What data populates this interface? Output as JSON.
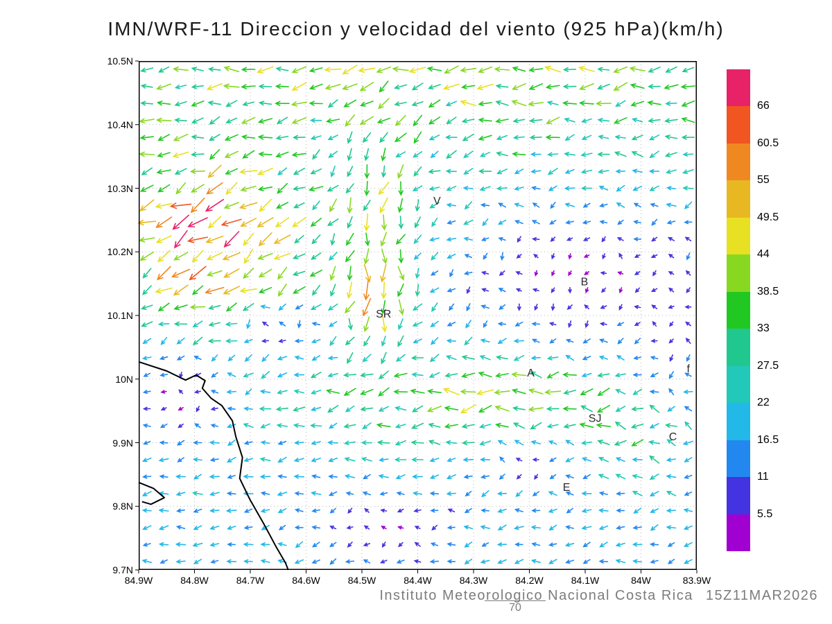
{
  "title": "IMN/WRF-11 Direccion y velocidad del viento (925 hPa)(km/h)",
  "footer": {
    "credit": "Instituto Meteorologico Nacional Costa Rica",
    "valid_time": "15Z11MAR2026",
    "page_number": "70"
  },
  "chart_data": {
    "type": "quiver",
    "title": "IMN/WRF-11 Direccion y velocidad del viento (925 hPa)(km/h)",
    "model": "IMN/WRF-11",
    "variable": "Direccion y velocidad del viento",
    "level": "925 hPa",
    "units": "km/h",
    "valid_time": "15Z11MAR2026",
    "grid_on": true,
    "x_axis": {
      "ticks": [
        "84.9W",
        "84.8W",
        "84.7W",
        "84.6W",
        "84.5W",
        "84.4W",
        "84.3W",
        "84.2W",
        "84.1W",
        "84W",
        "83.9W"
      ],
      "range_deg_west": [
        84.9,
        83.9
      ]
    },
    "y_axis": {
      "ticks": [
        "10.5N",
        "10.4N",
        "10.3N",
        "10.2N",
        "10.1N",
        "10N",
        "9.9N",
        "9.8N",
        "9.7N"
      ],
      "range_deg_north": [
        10.5,
        9.7
      ]
    },
    "grid_spacing_deg": 0.1,
    "colorbar": {
      "position": "right",
      "labels_top_to_bottom": [
        "66",
        "60.5",
        "55",
        "49.5",
        "44",
        "38.5",
        "33",
        "27.5",
        "22",
        "16.5",
        "11",
        "5.5"
      ],
      "levels": [
        5.5,
        11,
        16.5,
        22,
        27.5,
        33,
        38.5,
        44,
        49.5,
        55,
        60.5,
        66
      ],
      "colors_bottom_to_top": [
        "#a000d0",
        "#4433e0",
        "#2288f0",
        "#22b8e8",
        "#22c8b8",
        "#20c890",
        "#22c822",
        "#88d822",
        "#e8e022",
        "#e8b822",
        "#f08822",
        "#f05522",
        "#e82266"
      ]
    },
    "stations": [
      {
        "label": "V",
        "fx": 0.528,
        "fy": 0.282
      },
      {
        "label": "B",
        "fx": 0.792,
        "fy": 0.441
      },
      {
        "label": "SR",
        "fx": 0.425,
        "fy": 0.504
      },
      {
        "label": "A",
        "fx": 0.696,
        "fy": 0.62
      },
      {
        "label": "SJ",
        "fx": 0.806,
        "fy": 0.709
      },
      {
        "label": "C",
        "fx": 0.95,
        "fy": 0.745
      },
      {
        "label": "E",
        "fx": 0.76,
        "fy": 0.845
      },
      {
        "label": "f",
        "fx": 0.982,
        "fy": 0.612
      }
    ],
    "coastline_fraction_points": [
      [
        [
          0.0,
          0.591
        ],
        [
          0.05,
          0.609
        ],
        [
          0.084,
          0.627
        ],
        [
          0.103,
          0.617
        ],
        [
          0.119,
          0.628
        ],
        [
          0.114,
          0.643
        ],
        [
          0.13,
          0.663
        ],
        [
          0.149,
          0.677
        ],
        [
          0.168,
          0.707
        ],
        [
          0.174,
          0.738
        ],
        [
          0.186,
          0.779
        ],
        [
          0.181,
          0.82
        ],
        [
          0.199,
          0.861
        ],
        [
          0.224,
          0.909
        ],
        [
          0.246,
          0.954
        ],
        [
          0.263,
          0.986
        ],
        [
          0.268,
          1.0
        ]
      ],
      [
        [
          0.0,
          0.828
        ],
        [
          0.027,
          0.84
        ],
        [
          0.046,
          0.858
        ],
        [
          0.022,
          0.871
        ],
        [
          0.006,
          0.866
        ]
      ]
    ],
    "wind_field": {
      "seed": 20260311,
      "nx": 33,
      "ny": 30,
      "arrow": {
        "min_len": 7,
        "max_len": 30,
        "len_base": 5,
        "len_per_speed": 0.38,
        "stroke_width": 1.6
      },
      "base": {
        "u0": -16,
        "du_north": -14,
        "v0": -3
      },
      "jets": [
        {
          "cx": 0.5,
          "cy": 0.0,
          "sx": 0.45,
          "sy": 0.12,
          "au": -13,
          "av": 0
        },
        {
          "cx": 0.13,
          "cy": 0.35,
          "sx": 0.16,
          "sy": 0.17,
          "au": -24,
          "av": -32
        },
        {
          "cx": 0.42,
          "cy": 0.3,
          "sx": 0.1,
          "sy": 0.26,
          "au": 16,
          "av": -36
        },
        {
          "cx": 0.43,
          "cy": 0.47,
          "sx": 0.07,
          "sy": 0.1,
          "au": 14,
          "av": -26
        },
        {
          "cx": 0.62,
          "cy": 0.66,
          "sx": 0.27,
          "sy": 0.09,
          "au": -22,
          "av": 2
        },
        {
          "cx": 0.93,
          "cy": 0.72,
          "sx": 0.1,
          "sy": 0.1,
          "au": -16,
          "av": 6
        },
        {
          "cx": 0.7,
          "cy": 0.45,
          "sx": 0.12,
          "sy": 0.12,
          "au": 4,
          "av": -10
        }
      ],
      "calm_zones": [
        {
          "cx": 0.78,
          "cy": 0.42,
          "sx": 0.22,
          "sy": 0.15,
          "k": 0.82
        },
        {
          "cx": 0.97,
          "cy": 0.55,
          "sx": 0.1,
          "sy": 0.25,
          "k": 0.6
        },
        {
          "cx": 0.07,
          "cy": 0.66,
          "sx": 0.1,
          "sy": 0.09,
          "k": 0.78
        },
        {
          "cx": 0.45,
          "cy": 0.92,
          "sx": 0.11,
          "sy": 0.07,
          "k": 0.75
        },
        {
          "cx": 0.7,
          "cy": 0.8,
          "sx": 0.09,
          "sy": 0.05,
          "k": 0.7
        },
        {
          "cx": 0.25,
          "cy": 0.53,
          "sx": 0.08,
          "sy": 0.06,
          "k": 0.7
        }
      ],
      "jitter": {
        "angle": 0.45,
        "speed": 0.25
      }
    }
  }
}
